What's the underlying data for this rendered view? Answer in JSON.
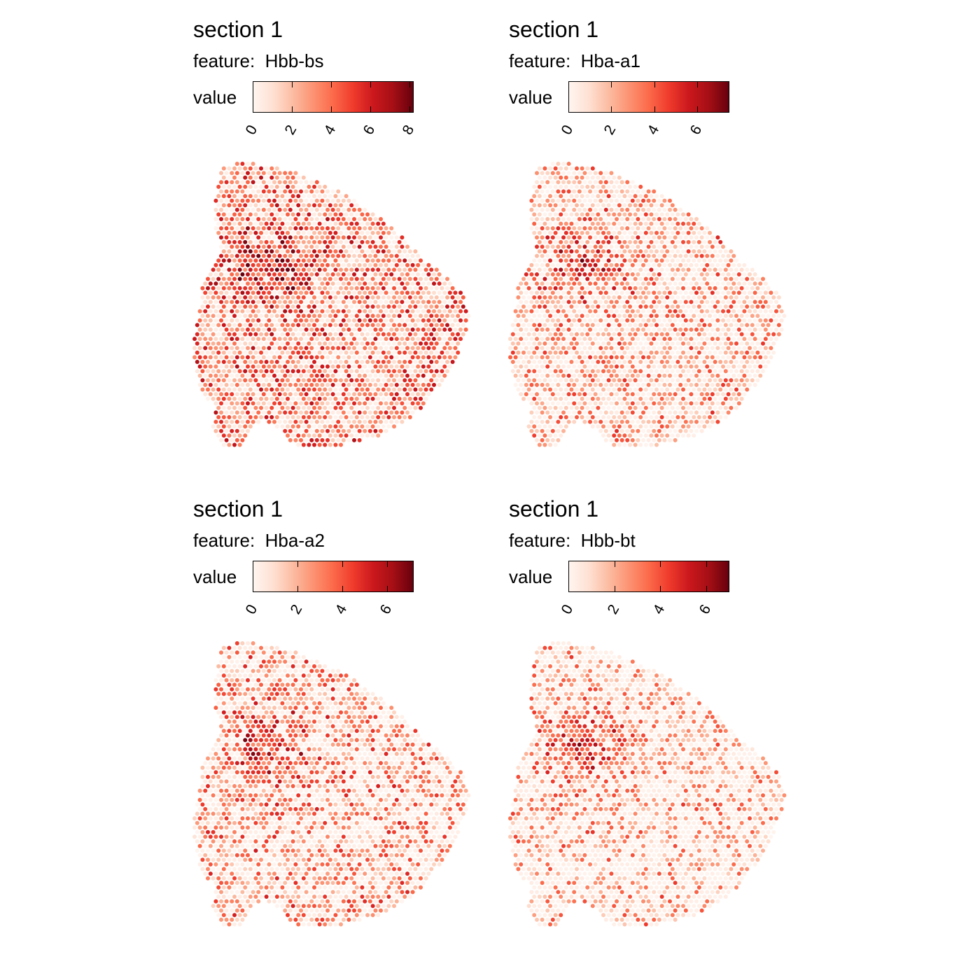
{
  "chart_data": [
    {
      "type": "scatter",
      "title": "section 1",
      "subtitle_label": "feature:",
      "feature": "Hbb-bs",
      "legend": {
        "title": "value",
        "min": 0,
        "max": 8.2,
        "ticks": [
          "0",
          "2",
          "4",
          "6",
          "8"
        ],
        "tick_values": [
          0,
          2,
          4,
          6,
          8
        ],
        "palette": "Reds"
      },
      "spot_style": {
        "mean_level": 0.45,
        "zero_fraction": 0.18,
        "seed": 11
      }
    },
    {
      "type": "scatter",
      "title": "section 1",
      "subtitle_label": "feature:",
      "feature": "Hba-a1",
      "legend": {
        "title": "value",
        "min": 0,
        "max": 7.5,
        "ticks": [
          "0",
          "2",
          "4",
          "6"
        ],
        "tick_values": [
          0,
          2,
          4,
          6
        ],
        "palette": "Reds"
      },
      "spot_style": {
        "mean_level": 0.35,
        "zero_fraction": 0.42,
        "seed": 23
      }
    },
    {
      "type": "scatter",
      "title": "section 1",
      "subtitle_label": "feature:",
      "feature": "Hba-a2",
      "legend": {
        "title": "value",
        "min": 0,
        "max": 7.2,
        "ticks": [
          "0",
          "2",
          "4",
          "6"
        ],
        "tick_values": [
          0,
          2,
          4,
          6
        ],
        "palette": "Reds"
      },
      "spot_style": {
        "mean_level": 0.38,
        "zero_fraction": 0.45,
        "seed": 37
      }
    },
    {
      "type": "scatter",
      "title": "section 1",
      "subtitle_label": "feature:",
      "feature": "Hbb-bt",
      "legend": {
        "title": "value",
        "min": 0,
        "max": 7.0,
        "ticks": [
          "0",
          "2",
          "4",
          "6"
        ],
        "tick_values": [
          0,
          2,
          4,
          6
        ],
        "palette": "Reds"
      },
      "spot_style": {
        "mean_level": 0.32,
        "zero_fraction": 0.55,
        "seed": 53
      }
    }
  ]
}
